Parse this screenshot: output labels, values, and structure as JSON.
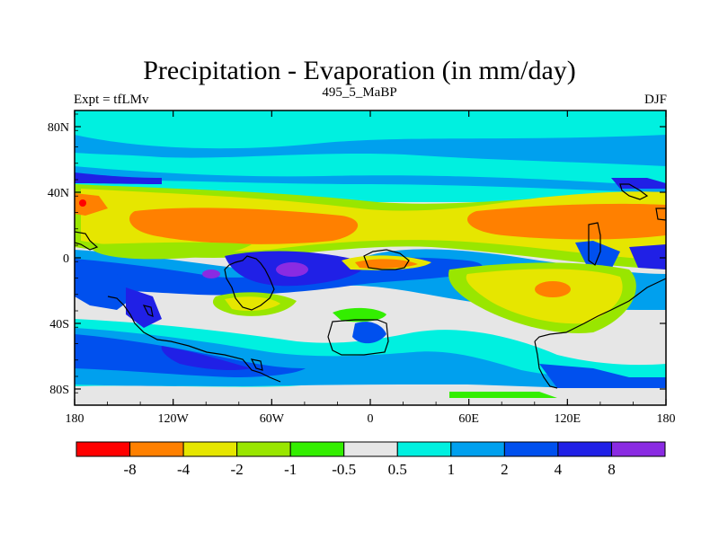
{
  "title": "Precipitation - Evaporation (in mm/day)",
  "subtitle_left": "Expt = tfLMv",
  "subtitle_center": "495_5_MaBP",
  "subtitle_right": "DJF",
  "map": {
    "y_ticks": [
      "80N",
      "40N",
      "0",
      "40S",
      "80S"
    ],
    "x_ticks": [
      "180",
      "120W",
      "60W",
      "0",
      "60E",
      "120E",
      "180"
    ]
  },
  "colorbar": {
    "labels": [
      "-8",
      "-4",
      "-2",
      "-1",
      "-0.5",
      "0.5",
      "1",
      "2",
      "4",
      "8"
    ],
    "colors": [
      "#ff0000",
      "#ff8000",
      "#e6e600",
      "#99e600",
      "#33ee00",
      "#e6e6e6",
      "#00f0e0",
      "#00a0ee",
      "#0050ee",
      "#2020e6",
      "#8a2be2"
    ]
  },
  "palette": {
    "ocean_base": "#e6e6e6",
    "land_outline": "#000000"
  }
}
